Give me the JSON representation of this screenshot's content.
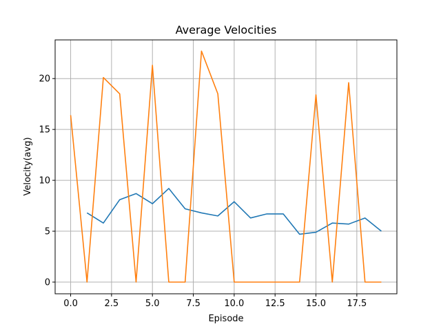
{
  "chart_data": {
    "type": "line",
    "title": "Average Velocities",
    "xlabel": "Episode",
    "ylabel": "Velocity(avg)",
    "xlim": [
      -0.95,
      19.95
    ],
    "ylim": [
      -1.15,
      23.8
    ],
    "grid": true,
    "legend": "none",
    "xticks": [
      0.0,
      2.5,
      5.0,
      7.5,
      10.0,
      12.5,
      15.0,
      17.5
    ],
    "xtick_labels": [
      "0.0",
      "2.5",
      "5.0",
      "7.5",
      "10.0",
      "12.5",
      "15.0",
      "17.5"
    ],
    "yticks": [
      0,
      5,
      10,
      15,
      20
    ],
    "ytick_labels": [
      "0",
      "5",
      "10",
      "15",
      "20"
    ],
    "series": [
      {
        "name": "series-blue",
        "color": "#1f77b4",
        "x": [
          1,
          2,
          3,
          4,
          5,
          6,
          7,
          8,
          9,
          10,
          11,
          12,
          13,
          14,
          15,
          16,
          17,
          18,
          19
        ],
        "values": [
          6.8,
          5.8,
          8.1,
          8.7,
          7.7,
          9.2,
          7.2,
          6.8,
          6.5,
          7.9,
          6.3,
          6.7,
          6.7,
          4.7,
          4.9,
          5.8,
          5.7,
          6.3,
          5.0
        ]
      },
      {
        "name": "series-orange",
        "color": "#ff7f0e",
        "x": [
          0,
          1,
          2,
          3,
          4,
          5,
          6,
          7,
          8,
          9,
          10,
          11,
          12,
          13,
          14,
          15,
          16,
          17,
          18,
          19
        ],
        "values": [
          16.4,
          0,
          20.1,
          18.5,
          0,
          21.3,
          0,
          0,
          22.7,
          18.5,
          0,
          0,
          0,
          0,
          0,
          18.4,
          0,
          19.6,
          0,
          0
        ]
      }
    ]
  }
}
